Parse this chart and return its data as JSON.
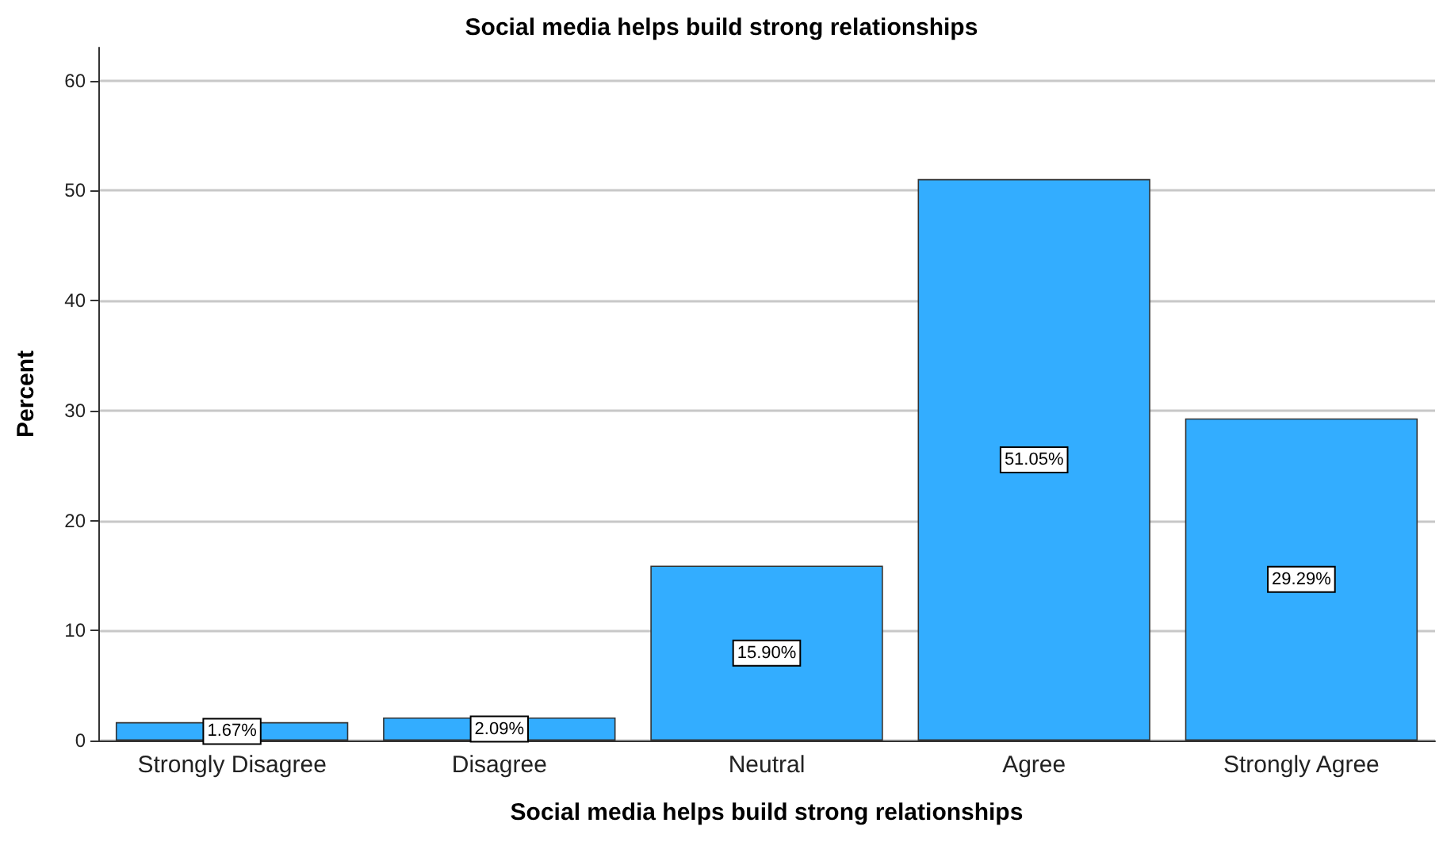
{
  "chart_data": {
    "type": "bar",
    "title": "Social media helps build strong relationships",
    "xlabel": "Social media helps build strong relationships",
    "ylabel": "Percent",
    "categories": [
      "Strongly Disagree",
      "Disagree",
      "Neutral",
      "Agree",
      "Strongly Agree"
    ],
    "values": [
      1.67,
      2.09,
      15.9,
      51.05,
      29.29
    ],
    "value_labels": [
      "1.67%",
      "2.09%",
      "15.90%",
      "51.05%",
      "29.29%"
    ],
    "color": "#33adff",
    "ylim": [
      0,
      63
    ],
    "yticks": [
      0,
      10,
      20,
      30,
      40,
      50,
      60
    ],
    "grid": "y"
  }
}
